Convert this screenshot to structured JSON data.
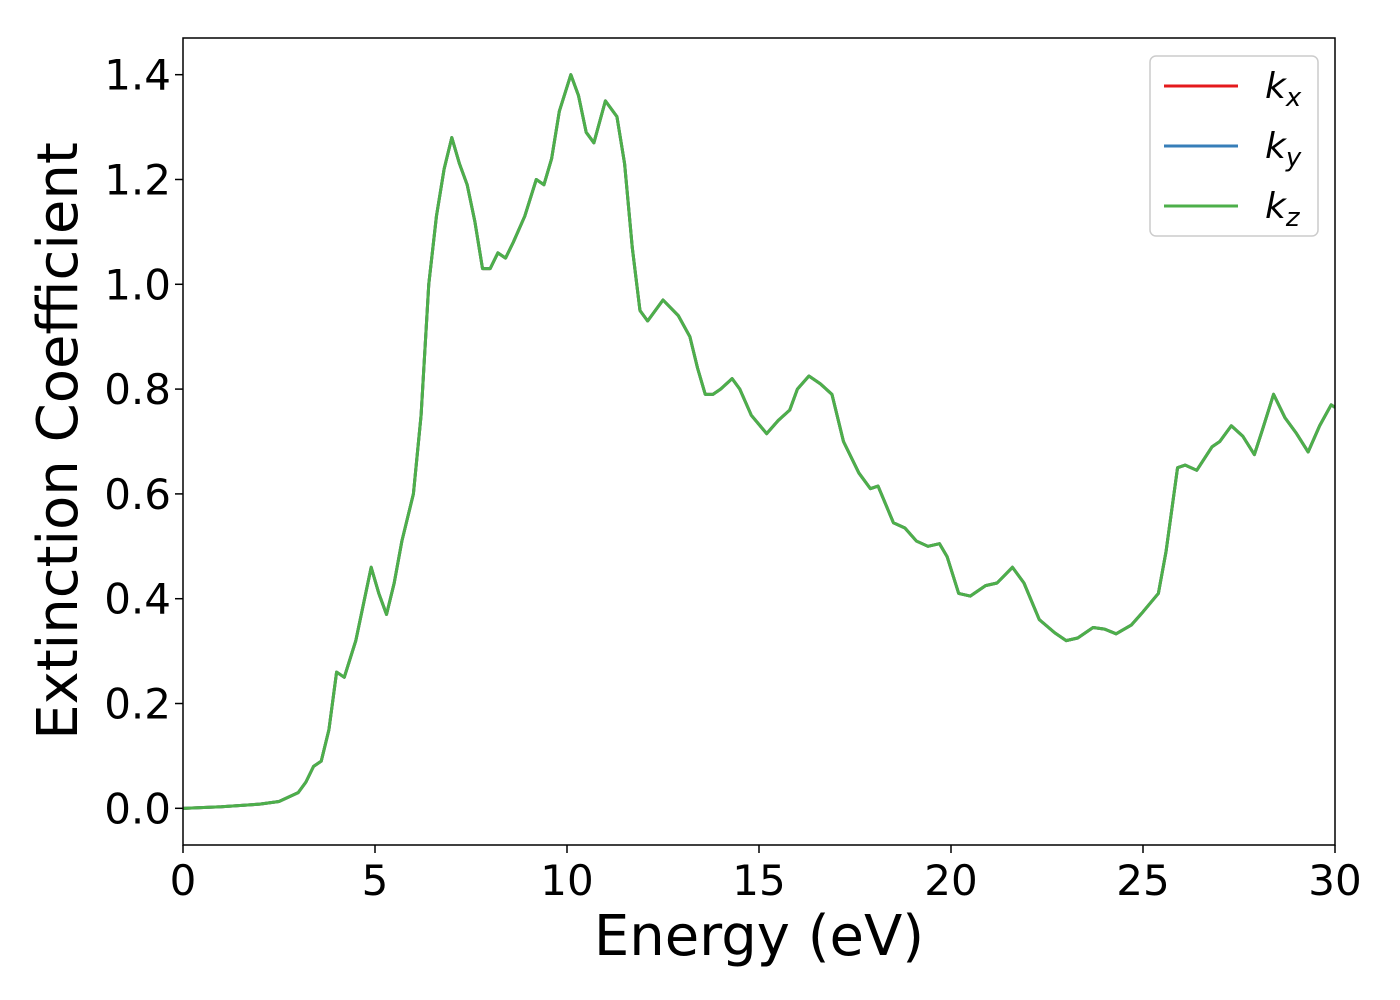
{
  "chart_data": {
    "type": "line",
    "x_label": "Energy (eV)",
    "y_label": "Extinction Coefficient",
    "x": [
      0,
      1,
      2,
      2.5,
      3,
      3.2,
      3.4,
      3.6,
      3.8,
      4.0,
      4.2,
      4.5,
      4.7,
      4.9,
      5.1,
      5.3,
      5.5,
      5.7,
      6.0,
      6.2,
      6.4,
      6.6,
      6.8,
      7.0,
      7.2,
      7.4,
      7.6,
      7.8,
      8.0,
      8.2,
      8.4,
      8.6,
      8.9,
      9.2,
      9.4,
      9.6,
      9.8,
      10.1,
      10.3,
      10.5,
      10.7,
      11.0,
      11.3,
      11.5,
      11.7,
      11.9,
      12.1,
      12.5,
      12.9,
      13.2,
      13.4,
      13.6,
      13.8,
      14.0,
      14.3,
      14.5,
      14.8,
      15.2,
      15.5,
      15.8,
      16.0,
      16.3,
      16.6,
      16.9,
      17.2,
      17.6,
      17.9,
      18.1,
      18.3,
      18.5,
      18.8,
      19.1,
      19.4,
      19.7,
      19.9,
      20.2,
      20.5,
      20.9,
      21.2,
      21.6,
      21.9,
      22.3,
      22.7,
      23.0,
      23.3,
      23.7,
      24.0,
      24.3,
      24.7,
      25.0,
      25.4,
      25.6,
      25.9,
      26.1,
      26.4,
      26.8,
      27.0,
      27.3,
      27.6,
      27.9,
      28.1,
      28.4,
      28.7,
      29.0,
      29.3,
      29.6,
      29.9,
      30.0
    ],
    "series": [
      {
        "name": "kx",
        "color": "#e41a1c",
        "values": [
          0.0,
          0.003,
          0.008,
          0.013,
          0.03,
          0.05,
          0.08,
          0.09,
          0.15,
          0.26,
          0.25,
          0.32,
          0.39,
          0.46,
          0.41,
          0.37,
          0.43,
          0.51,
          0.6,
          0.75,
          1.0,
          1.13,
          1.22,
          1.28,
          1.23,
          1.19,
          1.12,
          1.03,
          1.03,
          1.06,
          1.05,
          1.08,
          1.13,
          1.2,
          1.19,
          1.24,
          1.33,
          1.4,
          1.36,
          1.29,
          1.27,
          1.35,
          1.32,
          1.23,
          1.07,
          0.95,
          0.93,
          0.97,
          0.94,
          0.9,
          0.84,
          0.79,
          0.79,
          0.8,
          0.82,
          0.8,
          0.75,
          0.715,
          0.74,
          0.76,
          0.8,
          0.825,
          0.81,
          0.79,
          0.7,
          0.64,
          0.61,
          0.615,
          0.58,
          0.545,
          0.535,
          0.51,
          0.5,
          0.505,
          0.48,
          0.41,
          0.405,
          0.425,
          0.43,
          0.46,
          0.43,
          0.36,
          0.335,
          0.32,
          0.325,
          0.345,
          0.342,
          0.333,
          0.35,
          0.375,
          0.41,
          0.49,
          0.65,
          0.655,
          0.645,
          0.69,
          0.7,
          0.73,
          0.71,
          0.675,
          0.72,
          0.79,
          0.745,
          0.715,
          0.68,
          0.73,
          0.77,
          0.765
        ]
      },
      {
        "name": "ky",
        "color": "#377eb8",
        "values": [
          0.0,
          0.003,
          0.008,
          0.013,
          0.03,
          0.05,
          0.08,
          0.09,
          0.15,
          0.26,
          0.25,
          0.32,
          0.39,
          0.46,
          0.41,
          0.37,
          0.43,
          0.51,
          0.6,
          0.75,
          1.0,
          1.13,
          1.22,
          1.28,
          1.23,
          1.19,
          1.12,
          1.03,
          1.03,
          1.06,
          1.05,
          1.08,
          1.13,
          1.2,
          1.19,
          1.24,
          1.33,
          1.4,
          1.36,
          1.29,
          1.27,
          1.35,
          1.32,
          1.23,
          1.07,
          0.95,
          0.93,
          0.97,
          0.94,
          0.9,
          0.84,
          0.79,
          0.79,
          0.8,
          0.82,
          0.8,
          0.75,
          0.715,
          0.74,
          0.76,
          0.8,
          0.825,
          0.81,
          0.79,
          0.7,
          0.64,
          0.61,
          0.615,
          0.58,
          0.545,
          0.535,
          0.51,
          0.5,
          0.505,
          0.48,
          0.41,
          0.405,
          0.425,
          0.43,
          0.46,
          0.43,
          0.36,
          0.335,
          0.32,
          0.325,
          0.345,
          0.342,
          0.333,
          0.35,
          0.375,
          0.41,
          0.49,
          0.65,
          0.655,
          0.645,
          0.69,
          0.7,
          0.73,
          0.71,
          0.675,
          0.72,
          0.79,
          0.745,
          0.715,
          0.68,
          0.73,
          0.77,
          0.765
        ]
      },
      {
        "name": "kz",
        "color": "#4daf4a",
        "values": [
          0.0,
          0.003,
          0.008,
          0.013,
          0.03,
          0.05,
          0.08,
          0.09,
          0.15,
          0.26,
          0.25,
          0.32,
          0.39,
          0.46,
          0.41,
          0.37,
          0.43,
          0.51,
          0.6,
          0.75,
          1.0,
          1.13,
          1.22,
          1.28,
          1.23,
          1.19,
          1.12,
          1.03,
          1.03,
          1.06,
          1.05,
          1.08,
          1.13,
          1.2,
          1.19,
          1.24,
          1.33,
          1.4,
          1.36,
          1.29,
          1.27,
          1.35,
          1.32,
          1.23,
          1.07,
          0.95,
          0.93,
          0.97,
          0.94,
          0.9,
          0.84,
          0.79,
          0.79,
          0.8,
          0.82,
          0.8,
          0.75,
          0.715,
          0.74,
          0.76,
          0.8,
          0.825,
          0.81,
          0.79,
          0.7,
          0.64,
          0.61,
          0.615,
          0.58,
          0.545,
          0.535,
          0.51,
          0.5,
          0.505,
          0.48,
          0.41,
          0.405,
          0.425,
          0.43,
          0.46,
          0.43,
          0.36,
          0.335,
          0.32,
          0.325,
          0.345,
          0.342,
          0.333,
          0.35,
          0.375,
          0.41,
          0.49,
          0.65,
          0.655,
          0.645,
          0.69,
          0.7,
          0.73,
          0.71,
          0.675,
          0.72,
          0.79,
          0.745,
          0.715,
          0.68,
          0.73,
          0.77,
          0.765
        ]
      }
    ],
    "xlim": [
      0,
      30
    ],
    "xticks": [
      0,
      5,
      10,
      15,
      20,
      25,
      30
    ],
    "ylim": [
      -0.07,
      1.47
    ],
    "yticks": [
      {
        "value": 0,
        "label": "0.0"
      },
      0.2,
      0.4,
      0.6,
      0.8,
      {
        "value": 1,
        "label": "1.0"
      },
      1.2,
      1.4
    ],
    "grid": false,
    "legend": "upper right"
  }
}
